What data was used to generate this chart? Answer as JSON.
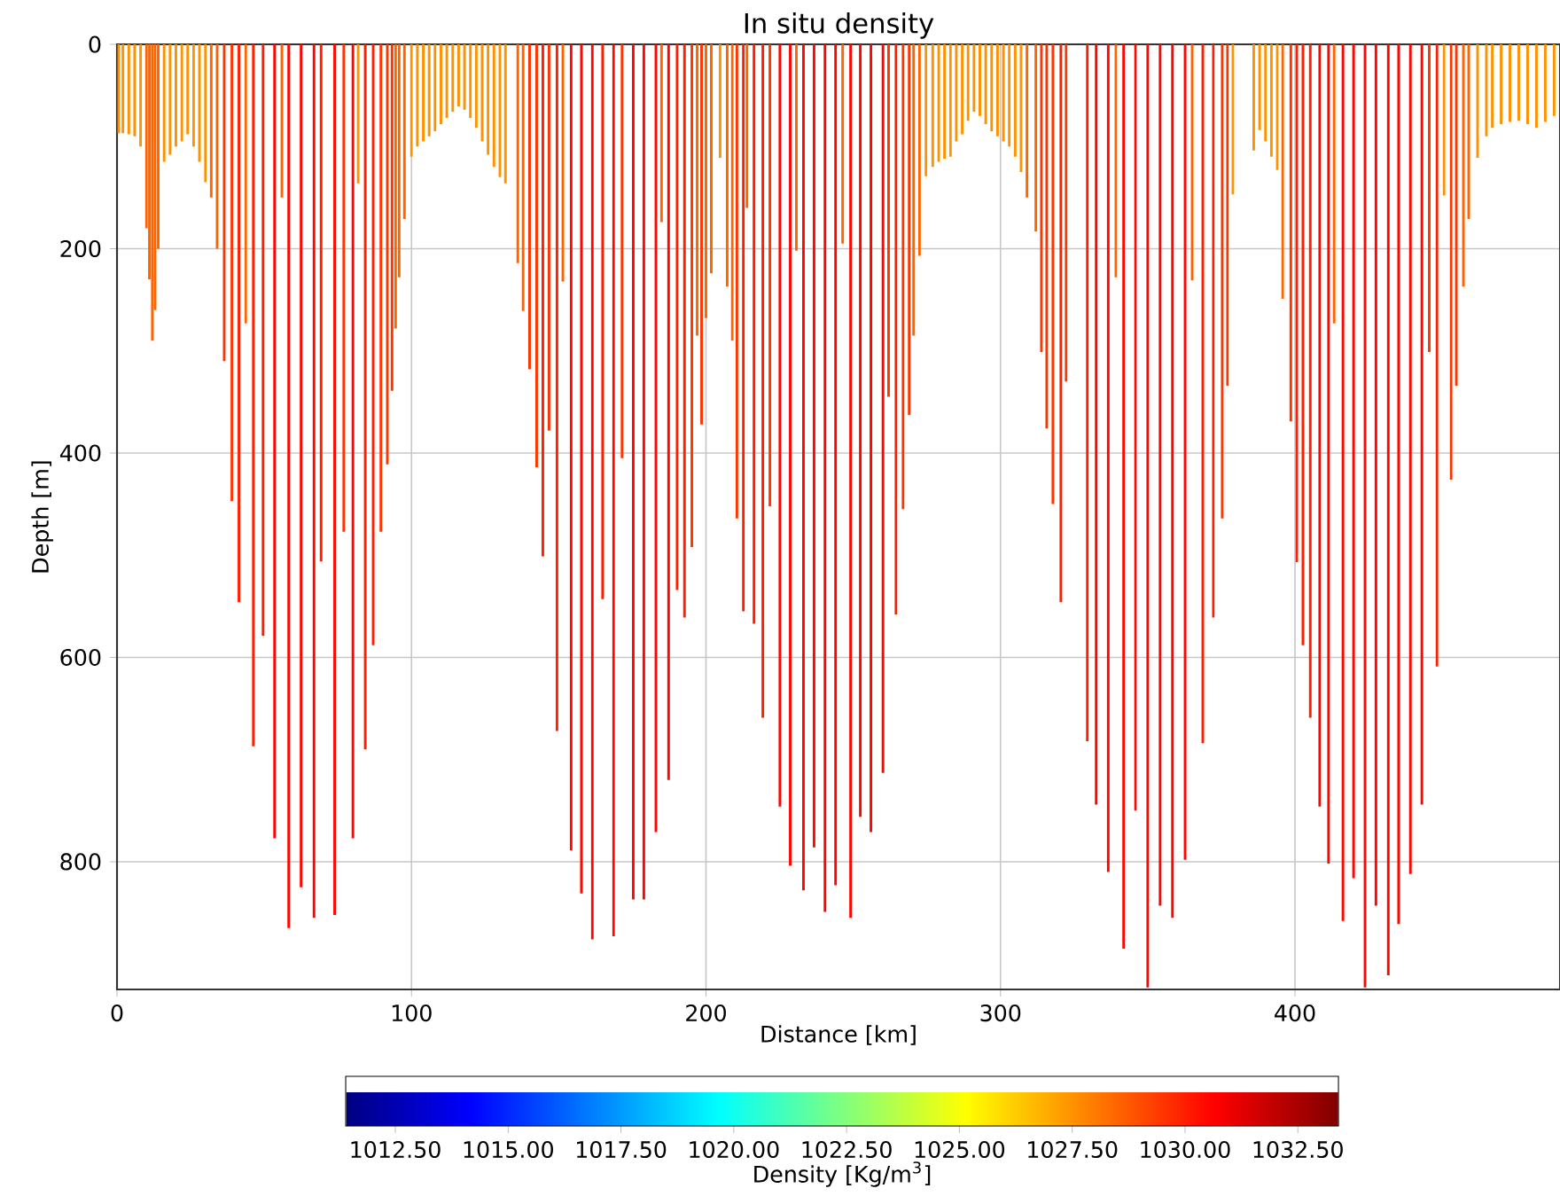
{
  "chart_data": {
    "type": "bar",
    "title": "In situ density",
    "xlabel": "Distance [km]",
    "ylabel": "Depth [m]",
    "clabel": "Density [Kg/m$^{3}$]",
    "x": [
      0.6,
      2,
      4,
      6,
      8,
      10,
      11,
      12,
      13,
      14,
      16,
      18,
      20,
      22,
      24,
      26,
      28,
      30,
      32,
      34,
      36.4,
      39,
      41.4,
      43.7,
      46.3,
      49.6,
      53.5,
      56,
      58.3,
      62.5,
      66.9,
      69.3,
      73.9,
      77,
      80.1,
      81.9,
      84.3,
      87,
      89.6,
      91.8,
      93.4,
      94.6,
      95.8,
      97.6,
      100,
      102,
      104,
      106,
      108,
      110,
      112,
      114,
      116,
      118,
      120,
      122,
      124,
      126,
      128,
      130,
      131.9,
      136.1,
      137.9,
      140.1,
      142.5,
      144.6,
      146.7,
      149.4,
      151.4,
      154.2,
      157.7,
      161.4,
      164.9,
      168.6,
      171.5,
      175.3,
      178.9,
      183,
      184.9,
      187.3,
      190.2,
      192.7,
      195.2,
      197,
      198.5,
      200,
      201.8,
      204.8,
      207.2,
      208.9,
      210.5,
      212.7,
      213.9,
      216.3,
      219.3,
      221.7,
      225.1,
      228.6,
      230.7,
      233.1,
      236.7,
      240.4,
      244,
      246.4,
      249.1,
      252.4,
      256,
      260.1,
      262,
      264.5,
      266.9,
      269,
      270.5,
      272.5,
      274.7,
      277,
      279,
      281,
      283,
      285,
      287,
      289,
      291,
      293,
      295,
      297,
      299,
      301,
      303,
      305,
      307,
      309,
      312,
      313.9,
      315.7,
      317.8,
      320.5,
      322.3,
      329.5,
      332.5,
      336.6,
      339.2,
      341.8,
      345.8,
      350,
      354.2,
      358.4,
      362.7,
      365.1,
      368.7,
      372.3,
      375.3,
      377.1,
      378.9,
      386,
      388,
      390,
      392,
      394,
      395.8,
      398.6,
      400.6,
      402.7,
      405.2,
      408.4,
      411.4,
      413.3,
      416.3,
      419.9,
      423.8,
      427.5,
      431.7,
      435.2,
      439.2,
      443.1,
      445.6,
      448.2,
      450.6,
      453,
      454.8,
      457.2,
      459,
      462,
      465,
      467,
      470,
      473,
      476,
      479,
      482,
      485,
      488
    ],
    "values": [
      87,
      87,
      88,
      90,
      100,
      180,
      230,
      290,
      260,
      200,
      115,
      108,
      100,
      95,
      88,
      100,
      115,
      135,
      150,
      200,
      310,
      447,
      546,
      273,
      687,
      579,
      777,
      150,
      865,
      825,
      855,
      506,
      852,
      477,
      777,
      136,
      690,
      588,
      477,
      411,
      339,
      278,
      228,
      171,
      110,
      100,
      95,
      90,
      85,
      78,
      72,
      66,
      61,
      64,
      72,
      82,
      95,
      108,
      120,
      130,
      136,
      214,
      261,
      318,
      414,
      501,
      378,
      672,
      232,
      789,
      831,
      876,
      543,
      873,
      405,
      837,
      837,
      771,
      174,
      720,
      534,
      561,
      492,
      285,
      372,
      268,
      224,
      111,
      237,
      290,
      464,
      555,
      160,
      567,
      659,
      452,
      746,
      804,
      202,
      828,
      786,
      849,
      823,
      195,
      855,
      756,
      771,
      713,
      345,
      558,
      455,
      363,
      285,
      207,
      129,
      120,
      115,
      112,
      110,
      95,
      88,
      75,
      66,
      70,
      78,
      85,
      90,
      95,
      100,
      110,
      125,
      150,
      183,
      301,
      376,
      450,
      546,
      330,
      682,
      744,
      810,
      228,
      885,
      750,
      923,
      843,
      855,
      798,
      231,
      684,
      561,
      464,
      334,
      147,
      104,
      84,
      95,
      110,
      123,
      249,
      369,
      507,
      588,
      659,
      746,
      802,
      273,
      858,
      816,
      923,
      843,
      911,
      861,
      812,
      744,
      301,
      609,
      148,
      426,
      334,
      237,
      171,
      111,
      90,
      82,
      78,
      76,
      75,
      78,
      82,
      76,
      70
    ],
    "cvalues": [
      1027.5,
      1027.5,
      1027.5,
      1027.5,
      1027.5,
      1028.5,
      1028.5,
      1028.5,
      1028.5,
      1028.5,
      1027.5,
      1027.5,
      1027.5,
      1027.5,
      1027.5,
      1027.5,
      1027.5,
      1027.5,
      1028.5,
      1028.5,
      1029.5,
      1029.5,
      1030,
      1028.5,
      1030,
      1030,
      1030.5,
      1028.5,
      1030.5,
      1030.5,
      1030.5,
      1030,
      1030.5,
      1029.5,
      1030.5,
      1027.5,
      1030,
      1030,
      1029.5,
      1029.5,
      1029.5,
      1028.5,
      1028.5,
      1028.5,
      1027.5,
      1027.5,
      1027.5,
      1027.5,
      1027.5,
      1027.5,
      1027.5,
      1027.5,
      1027.5,
      1027.5,
      1027.5,
      1027.5,
      1027.5,
      1027.5,
      1027.5,
      1027.5,
      1027.5,
      1028.5,
      1028.5,
      1029.5,
      1029.5,
      1030,
      1029.5,
      1030,
      1028.5,
      1030.5,
      1030.5,
      1030.5,
      1030,
      1030.5,
      1029.5,
      1030.5,
      1030.5,
      1030.5,
      1028.5,
      1030.5,
      1030,
      1030,
      1029.5,
      1028.5,
      1029.5,
      1028.5,
      1028.5,
      1027.5,
      1028.5,
      1028.5,
      1029.5,
      1030,
      1028.5,
      1030,
      1030,
      1029.5,
      1030.5,
      1030.5,
      1028.5,
      1030.5,
      1030.5,
      1030.5,
      1030.5,
      1028.5,
      1030.5,
      1030.5,
      1030.5,
      1030.5,
      1029.5,
      1030,
      1029.5,
      1029.5,
      1028.5,
      1028.5,
      1027.5,
      1027.5,
      1027.5,
      1027.5,
      1027.5,
      1027.5,
      1027.5,
      1027.5,
      1027.5,
      1027.5,
      1027.5,
      1027.5,
      1027.5,
      1027.5,
      1027.5,
      1027.5,
      1027.5,
      1028.5,
      1028.5,
      1029.5,
      1029.5,
      1029.5,
      1030,
      1029.5,
      1030,
      1030.5,
      1030.5,
      1028.5,
      1030.5,
      1030.5,
      1030.5,
      1030.5,
      1030.5,
      1030.5,
      1028.5,
      1030,
      1030,
      1029.5,
      1029.5,
      1027.5,
      1027.5,
      1027.5,
      1027.5,
      1027.5,
      1027.5,
      1028.5,
      1029.5,
      1030,
      1030,
      1030,
      1030.5,
      1030.5,
      1028.5,
      1030.5,
      1030.5,
      1030.5,
      1030.5,
      1030.5,
      1030.5,
      1030.5,
      1030.5,
      1029.5,
      1030,
      1027.5,
      1029.5,
      1029.5,
      1028.5,
      1028.5,
      1027.5,
      1027.5,
      1027.5,
      1027.5,
      1027.5,
      1027.5,
      1027.5,
      1027.5,
      1027.5,
      1027.5
    ],
    "xlim": [
      0,
      490
    ],
    "ylim": [
      925,
      0
    ],
    "xticks": [
      0,
      100,
      200,
      300,
      400
    ],
    "yticks": [
      0,
      200,
      400,
      600,
      800
    ],
    "clim": [
      1011.4,
      1033.4
    ],
    "cticks": [
      {
        "value": 1012.5,
        "label": "1012.50"
      },
      {
        "value": 1015,
        "label": "1015.00"
      },
      {
        "value": 1017.5,
        "label": "1017.50"
      },
      {
        "value": 1020,
        "label": "1020.00"
      },
      {
        "value": 1022.5,
        "label": "1022.50"
      },
      {
        "value": 1025,
        "label": "1025.00"
      },
      {
        "value": 1027.5,
        "label": "1027.50"
      },
      {
        "value": 1030,
        "label": "1030.00"
      },
      {
        "value": 1032.5,
        "label": "1032.50"
      }
    ],
    "grid": true
  }
}
